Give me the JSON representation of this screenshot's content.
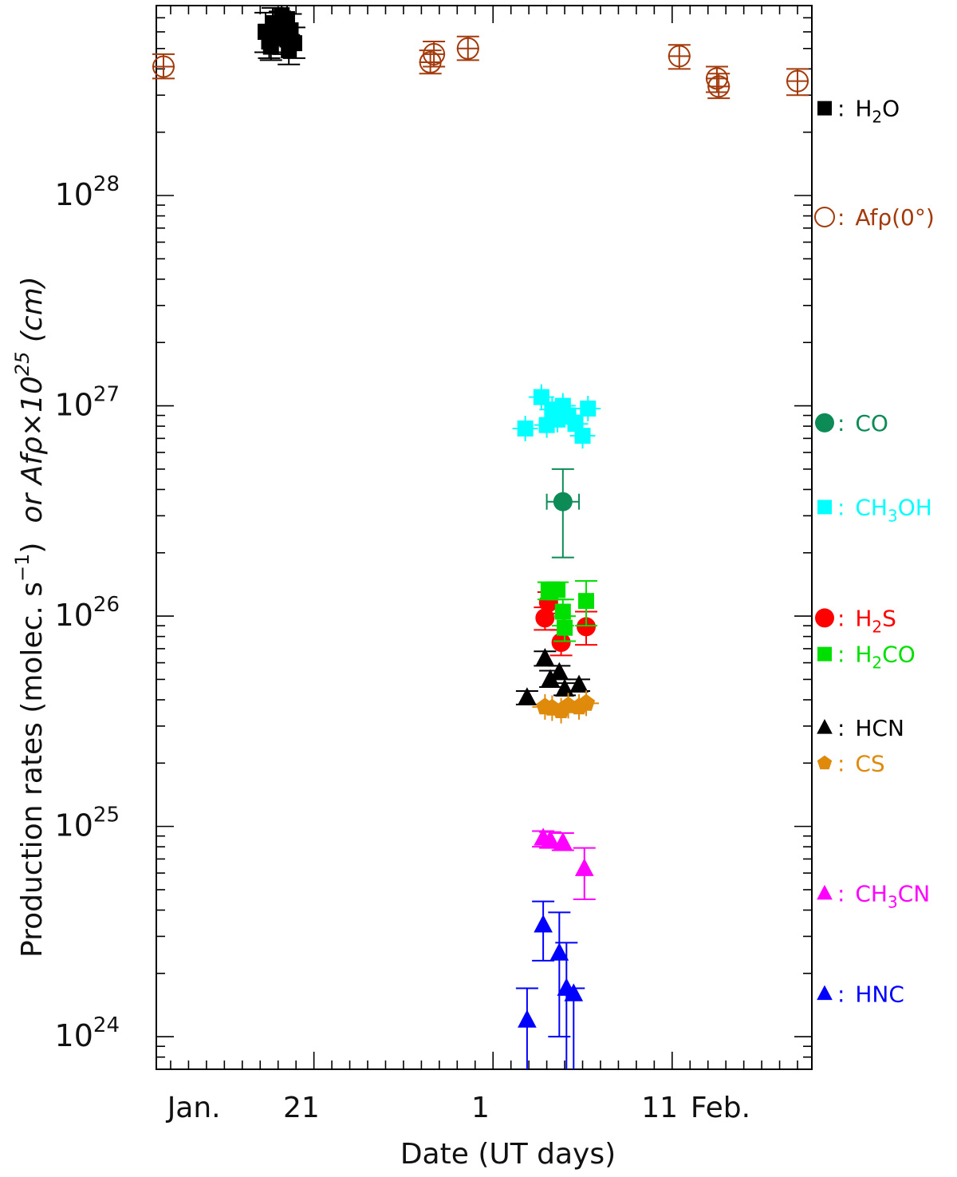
{
  "chart_data": {
    "type": "scatter",
    "yscale": "log",
    "ylim": [
      7e+23,
      8e+28
    ],
    "xlim": [
      12.2,
      48.8
    ],
    "ylabel_main": "Production rates (molec. s",
    "ylabel_sup": "−1",
    "ylabel_close": ")",
    "ylabel_alt": "or Afρ×10",
    "ylabel_alt_sup": "25",
    "ylabel_alt_unit": " (cm)",
    "xlabel": "Date (UT days)",
    "y_ticks": [
      {
        "value": 1e+24,
        "base": "10",
        "exp": "24"
      },
      {
        "value": 1e+25,
        "base": "10",
        "exp": "25"
      },
      {
        "value": 1e+26,
        "base": "10",
        "exp": "26"
      },
      {
        "value": 1e+27,
        "base": "10",
        "exp": "27"
      },
      {
        "value": 1e+28,
        "base": "10",
        "exp": "28"
      }
    ],
    "x_tick_labels": [
      {
        "x": 14.3,
        "label": "Jan."
      },
      {
        "x": 20.3,
        "label": "21"
      },
      {
        "x": 30.3,
        "label": "1"
      },
      {
        "x": 40.3,
        "label": "11"
      },
      {
        "x": 43.7,
        "label": "Feb."
      }
    ],
    "series": [
      {
        "name": "H2O",
        "legend_main": "H",
        "legend_sub": "2",
        "legend_tail": "O",
        "color": "#000000",
        "marker": "square",
        "filled": true,
        "legend_y": 2.6e+28,
        "points": [
          {
            "x": 18.3,
            "y": 6e+28,
            "yerr": [
              4.8e+28,
              7.4e+28
            ]
          },
          {
            "x": 18.5,
            "y": 5.4e+28,
            "yerr": [
              4.5e+28,
              6.5e+28
            ]
          },
          {
            "x": 18.7,
            "y": 6.6e+28,
            "yerr": [
              5.5e+28,
              7.8e+28
            ]
          },
          {
            "x": 18.9,
            "y": 5.8e+28,
            "yerr": [
              4.8e+28,
              7e+28
            ]
          },
          {
            "x": 19.1,
            "y": 6.3e+28,
            "yerr": [
              5.3e+28,
              7.5e+28
            ]
          },
          {
            "x": 19.3,
            "y": 5.6e+28,
            "yerr": [
              4.7e+28,
              6.6e+28
            ]
          },
          {
            "x": 19.5,
            "y": 6.9e+28,
            "yerr": [
              5.8e+28,
              8e+28
            ]
          },
          {
            "x": 19.7,
            "y": 6.1e+28,
            "yerr": [
              5.1e+28,
              7.3e+28
            ]
          },
          {
            "x": 19.9,
            "y": 5.3e+28,
            "yerr": [
              4.5e+28,
              6.3e+28
            ]
          },
          {
            "x": 18.6,
            "y": 5.1e+28,
            "yerr": [
              4.4e+28,
              6e+28
            ]
          },
          {
            "x": 19.2,
            "y": 7.2e+28,
            "yerr": [
              6e+28,
              8e+28
            ]
          },
          {
            "x": 19.6,
            "y": 4.9e+28,
            "yerr": [
              4.2e+28,
              5.8e+28
            ]
          }
        ]
      },
      {
        "name": "Afρ(0°)",
        "legend_main": "Afρ(0°)",
        "legend_sub": "",
        "legend_tail": "",
        "color": "#a33a0b",
        "marker": "circle",
        "filled": false,
        "legend_y": 7.9e+27,
        "points": [
          {
            "x": 12.6,
            "y": 4.1e+28,
            "yerr": [
              3.6e+28,
              4.7e+28
            ]
          },
          {
            "x": 27.5,
            "y": 4.3e+28,
            "yerr": [
              3.8e+28,
              4.9e+28
            ]
          },
          {
            "x": 27.7,
            "y": 4.7e+28,
            "yerr": [
              4.1e+28,
              5.4e+28
            ]
          },
          {
            "x": 29.6,
            "y": 5e+28,
            "yerr": [
              4.4e+28,
              5.7e+28
            ]
          },
          {
            "x": 41.4,
            "y": 4.6e+28,
            "yerr": [
              4e+28,
              5.2e+28
            ]
          },
          {
            "x": 43.5,
            "y": 3.6e+28,
            "yerr": [
              3.1e+28,
              4.1e+28
            ]
          },
          {
            "x": 43.6,
            "y": 3.3e+28,
            "yerr": [
              2.9e+28,
              3.8e+28
            ]
          },
          {
            "x": 48.0,
            "y": 3.5e+28,
            "yerr": [
              3e+28,
              4e+28
            ]
          }
        ]
      },
      {
        "name": "CO",
        "legend_main": "CO",
        "legend_sub": "",
        "legend_tail": "",
        "color": "#0c8b56",
        "marker": "circle",
        "filled": true,
        "legend_y": 8.3e+26,
        "points": [
          {
            "x": 34.9,
            "y": 3.5e+26,
            "yerr": [
              1.9e+26,
              5e+26
            ],
            "xerr": [
              34.0,
              35.8
            ]
          }
        ]
      },
      {
        "name": "CH3OH",
        "legend_main": "CH",
        "legend_sub": "3",
        "legend_tail": "OH",
        "color": "#00ffff",
        "marker": "square",
        "filled": true,
        "legend_y": 3.3e+26,
        "points": [
          {
            "x": 32.8,
            "y": 7.8e+26
          },
          {
            "x": 33.7,
            "y": 1.1e+27
          },
          {
            "x": 34.0,
            "y": 8.1e+26
          },
          {
            "x": 34.3,
            "y": 9.6e+26
          },
          {
            "x": 34.6,
            "y": 8.6e+26
          },
          {
            "x": 34.9,
            "y": 1e+27
          },
          {
            "x": 35.2,
            "y": 9e+26
          },
          {
            "x": 35.6,
            "y": 8.2e+26
          },
          {
            "x": 36.0,
            "y": 7.2e+26
          },
          {
            "x": 36.3,
            "y": 9.7e+26
          }
        ]
      },
      {
        "name": "H2S",
        "legend_main": "H",
        "legend_sub": "2",
        "legend_tail": "S",
        "color": "#ff0000",
        "marker": "circle",
        "filled": true,
        "legend_y": 9.8e+25,
        "points": [
          {
            "x": 33.9,
            "y": 9.8e+25,
            "yerr": [
              8.6e+25,
              1.1e+26
            ]
          },
          {
            "x": 34.1,
            "y": 1.16e+26,
            "yerr": [
              1.03e+26,
              1.3e+26
            ]
          },
          {
            "x": 34.8,
            "y": 7.5e+25,
            "yerr": [
              6.5e+25,
              8.6e+25
            ]
          },
          {
            "x": 36.2,
            "y": 8.9e+25,
            "yerr": [
              7.3e+25,
              1.05e+26
            ]
          }
        ]
      },
      {
        "name": "H2CO",
        "legend_main": "H",
        "legend_sub": "2",
        "legend_tail": "CO",
        "color": "#00e000",
        "marker": "square",
        "filled": true,
        "legend_y": 6.6e+25,
        "points": [
          {
            "x": 34.1,
            "y": 1.32e+26,
            "yerr": [
              1.2e+26,
              1.45e+26
            ]
          },
          {
            "x": 34.6,
            "y": 1.33e+26,
            "yerr": [
              1.2e+26,
              1.45e+26
            ]
          },
          {
            "x": 34.9,
            "y": 1.05e+26,
            "yerr": [
              9e+25,
              1.2e+26
            ]
          },
          {
            "x": 35.0,
            "y": 8.8e+25,
            "yerr": [
              7.6e+25,
              1e+26
            ]
          },
          {
            "x": 36.2,
            "y": 1.18e+26,
            "yerr": [
              9e+25,
              1.47e+26
            ]
          }
        ]
      },
      {
        "name": "HCN",
        "legend_main": "HCN",
        "legend_sub": "",
        "legend_tail": "",
        "color": "#000000",
        "marker": "triangle",
        "filled": true,
        "legend_y": 2.95e+25,
        "points": [
          {
            "x": 32.9,
            "y": 4.1e+25,
            "yerr": [
              3.8e+25,
              4.4e+25
            ]
          },
          {
            "x": 33.9,
            "y": 6.3e+25,
            "yerr": [
              5.8e+25,
              6.8e+25
            ]
          },
          {
            "x": 34.2,
            "y": 5e+25,
            "yerr": [
              4.6e+25,
              5.5e+25
            ]
          },
          {
            "x": 34.7,
            "y": 5.4e+25,
            "yerr": [
              5e+25,
              5.8e+25
            ]
          },
          {
            "x": 35.0,
            "y": 4.5e+25,
            "yerr": [
              4.2e+25,
              4.8e+25
            ]
          },
          {
            "x": 35.8,
            "y": 4.7e+25,
            "yerr": [
              4.4e+25,
              5e+25
            ]
          }
        ]
      },
      {
        "name": "CS",
        "legend_main": "CS",
        "legend_sub": "",
        "legend_tail": "",
        "color": "#e08a0c",
        "marker": "pentagon",
        "filled": true,
        "legend_y": 2e+25,
        "points": [
          {
            "x": 33.9,
            "y": 3.7e+25
          },
          {
            "x": 34.3,
            "y": 3.65e+25
          },
          {
            "x": 34.8,
            "y": 3.55e+25
          },
          {
            "x": 35.2,
            "y": 3.75e+25
          },
          {
            "x": 35.8,
            "y": 3.7e+25
          },
          {
            "x": 36.2,
            "y": 3.85e+25
          }
        ]
      },
      {
        "name": "CH3CN",
        "legend_main": "CH",
        "legend_sub": "3",
        "legend_tail": "CN",
        "color": "#ff00ff",
        "marker": "triangle",
        "filled": true,
        "legend_y": 4.8e+24,
        "points": [
          {
            "x": 33.8,
            "y": 8.8e+24,
            "yerr": [
              8e+24,
              9.5e+24
            ]
          },
          {
            "x": 34.2,
            "y": 8.6e+24,
            "yerr": [
              7.9e+24,
              9.4e+24
            ]
          },
          {
            "x": 34.9,
            "y": 8.4e+24,
            "yerr": [
              7.7e+24,
              9.3e+24
            ]
          },
          {
            "x": 36.1,
            "y": 6.3e+24,
            "yerr": [
              4.5e+24,
              7.9e+24
            ]
          }
        ]
      },
      {
        "name": "HNC",
        "legend_main": "HNC",
        "legend_sub": "",
        "legend_tail": "",
        "color": "#0000ff",
        "marker": "triangle",
        "filled": true,
        "legend_y": 1.6e+24,
        "points": [
          {
            "x": 32.9,
            "y": 1.2e+24,
            "yerr": [
              6.5e+23,
              1.7e+24
            ]
          },
          {
            "x": 33.8,
            "y": 3.4e+24,
            "yerr": [
              2.3e+24,
              4.4e+24
            ]
          },
          {
            "x": 34.7,
            "y": 2.5e+24,
            "yerr": [
              1e+24,
              3.9e+24
            ]
          },
          {
            "x": 35.1,
            "y": 1.7e+24,
            "yerr": [
              6.5e+23,
              2.8e+24
            ]
          },
          {
            "x": 35.5,
            "y": 1.6e+24,
            "yerr": [
              6.5e+23,
              1.7e+24
            ]
          }
        ]
      }
    ]
  }
}
